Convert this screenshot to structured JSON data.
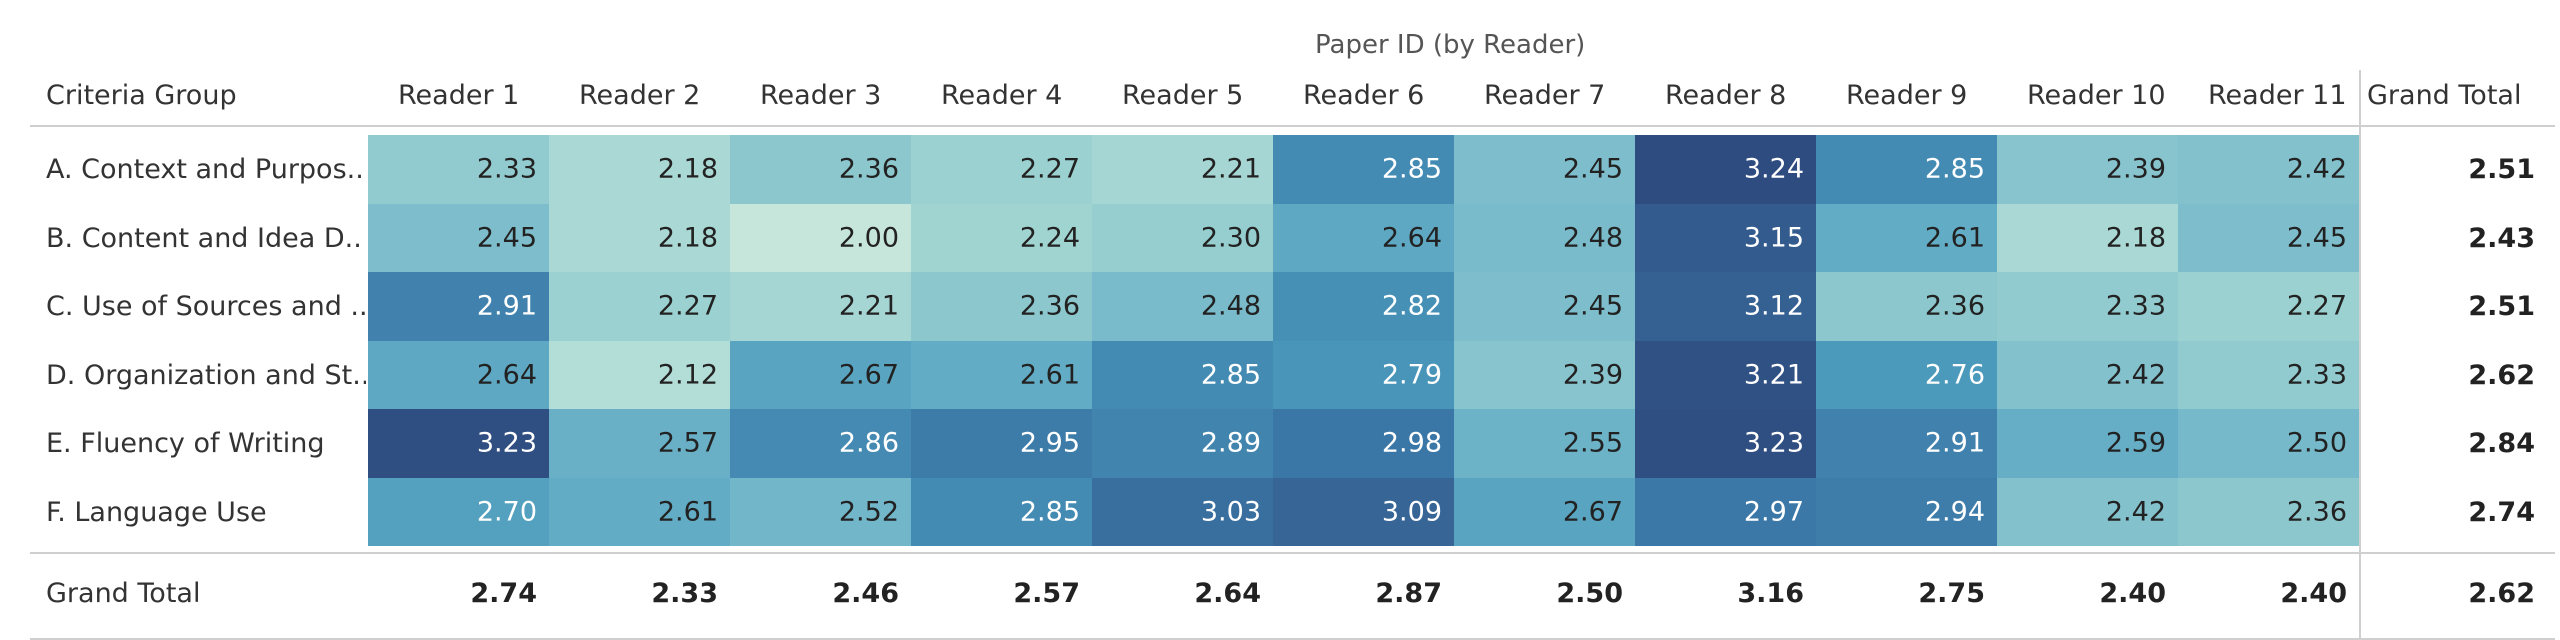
{
  "chart_data": {
    "type": "heatmap",
    "column_group_title": "Paper ID (by Reader)",
    "row_header": "Criteria Group",
    "grand_total_label": "Grand Total",
    "columns": [
      "Reader 1",
      "Reader 2",
      "Reader 3",
      "Reader 4",
      "Reader 5",
      "Reader 6",
      "Reader 7",
      "Reader 8",
      "Reader 9",
      "Reader 10",
      "Reader 11"
    ],
    "rows": [
      "A. Context and Purpos..",
      "B. Content and Idea D..",
      "C. Use of Sources and ..",
      "D. Organization and St..",
      "E. Fluency of Writing",
      "F. Language Use"
    ],
    "values": [
      [
        "2.33",
        "2.18",
        "2.36",
        "2.27",
        "2.21",
        "2.85",
        "2.45",
        "3.24",
        "2.85",
        "2.39",
        "2.42"
      ],
      [
        "2.45",
        "2.18",
        "2.00",
        "2.24",
        "2.30",
        "2.64",
        "2.48",
        "3.15",
        "2.61",
        "2.18",
        "2.45"
      ],
      [
        "2.91",
        "2.27",
        "2.21",
        "2.36",
        "2.48",
        "2.82",
        "2.45",
        "3.12",
        "2.36",
        "2.33",
        "2.27"
      ],
      [
        "2.64",
        "2.12",
        "2.67",
        "2.61",
        "2.85",
        "2.79",
        "2.39",
        "3.21",
        "2.76",
        "2.42",
        "2.33"
      ],
      [
        "3.23",
        "2.57",
        "2.86",
        "2.95",
        "2.89",
        "2.98",
        "2.55",
        "3.23",
        "2.91",
        "2.59",
        "2.50"
      ],
      [
        "2.70",
        "2.61",
        "2.52",
        "2.85",
        "3.03",
        "3.09",
        "2.67",
        "2.97",
        "2.94",
        "2.42",
        "2.36"
      ]
    ],
    "row_totals": [
      "2.51",
      "2.43",
      "2.51",
      "2.62",
      "2.84",
      "2.74"
    ],
    "column_totals": [
      "2.74",
      "2.33",
      "2.46",
      "2.57",
      "2.64",
      "2.87",
      "2.50",
      "3.16",
      "2.75",
      "2.40",
      "2.40"
    ],
    "grand_total": "2.62",
    "color_scale": {
      "low": "#c6e6dc",
      "high": "#2f4c80"
    },
    "value_range": [
      2.0,
      3.24
    ]
  }
}
